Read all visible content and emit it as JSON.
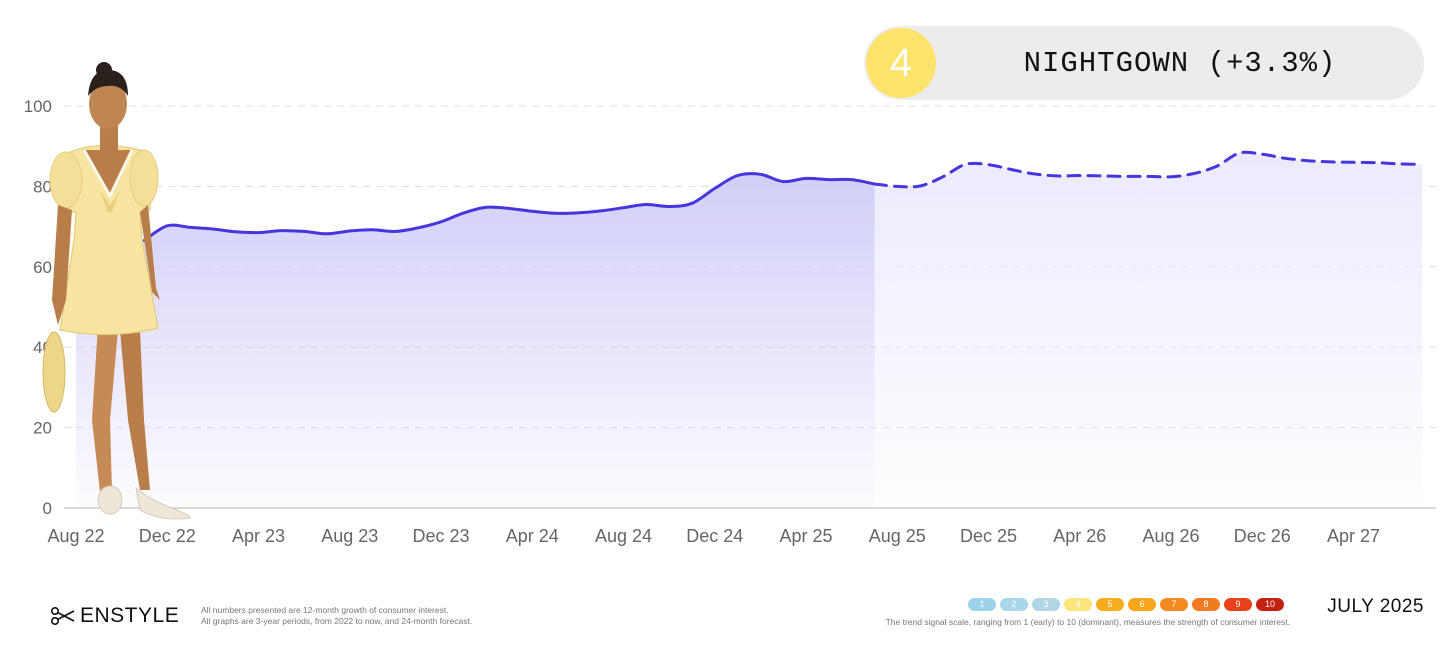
{
  "chart_data": {
    "type": "area",
    "title": "",
    "xlabel": "",
    "ylabel": "",
    "ylim": [
      0,
      100
    ],
    "y_ticks": [
      0,
      20,
      40,
      60,
      80,
      100
    ],
    "x_ticks": [
      "Aug 22",
      "Dec 22",
      "Apr 23",
      "Aug 23",
      "Dec 23",
      "Apr 24",
      "Aug 24",
      "Dec 24",
      "Apr 25",
      "Aug 25",
      "Dec 25",
      "Apr 26",
      "Aug 26",
      "Dec 26",
      "Apr 27"
    ],
    "grid": "horizontal dashed",
    "series": [
      {
        "style": "solid",
        "x": [
          "Nov 22",
          "Dec 22",
          "Jan 23",
          "Feb 23",
          "Mar 23",
          "Apr 23",
          "May 23",
          "Jun 23",
          "Jul 23",
          "Aug 23",
          "Sep 23",
          "Oct 23",
          "Nov 23",
          "Dec 23",
          "Jan 24",
          "Feb 24",
          "Mar 24",
          "Apr 24",
          "May 24",
          "Jun 24",
          "Jul 24",
          "Aug 24",
          "Sep 24",
          "Oct 24",
          "Nov 24",
          "Dec 24",
          "Jan 25",
          "Feb 25",
          "Mar 25",
          "Apr 25",
          "May 25",
          "Jun 25",
          "Jul 25"
        ],
        "values": [
          66.6,
          70.2,
          69.8,
          69.4,
          68.7,
          68.5,
          69.0,
          68.8,
          68.2,
          68.9,
          69.2,
          68.8,
          69.7,
          71.2,
          73.4,
          74.8,
          74.5,
          73.8,
          73.3,
          73.4,
          73.9,
          74.7,
          75.5,
          75.0,
          75.8,
          79.5,
          82.7,
          83.0,
          81.2,
          82.0,
          81.7,
          81.7,
          80.6
        ]
      },
      {
        "style": "dashed forecast",
        "x": [
          "Jul 25",
          "Aug 25",
          "Sep 25",
          "Oct 25",
          "Nov 25",
          "Dec 25",
          "Jan 26",
          "Feb 26",
          "Mar 26",
          "Apr 26",
          "May 26",
          "Jun 26",
          "Jul 26",
          "Aug 26",
          "Sep 26",
          "Oct 26",
          "Nov 26",
          "Dec 26",
          "Jan 27",
          "Feb 27",
          "Mar 27",
          "Apr 27",
          "May 27",
          "Jun 27",
          "Jul 27"
        ],
        "values": [
          80.6,
          80.0,
          80.1,
          82.4,
          85.5,
          85.4,
          84.2,
          83.1,
          82.6,
          82.7,
          82.6,
          82.5,
          82.5,
          82.4,
          83.2,
          85.0,
          88.3,
          88.0,
          87.0,
          86.4,
          86.1,
          86.0,
          85.9,
          85.6,
          85.5
        ]
      }
    ],
    "colors": {
      "line": "#4636dd",
      "fill_past": "#cfccf8",
      "fill_forecast": "#ebe9fc",
      "grid": "#dddddd",
      "axis": "#cccccc"
    }
  },
  "badge": {
    "rank": "4",
    "label": "NIGHTGOWN (+3.3%)",
    "rank_color": "#fde36b"
  },
  "footer": {
    "brand_icon": "scissors-icon",
    "brand_name": "ENSTYLE",
    "note_line1": "All numbers presented are 12-month growth of consumer interest.",
    "note_line2": "All graphs are 3-year periods, from 2022 to now, and 24-month forecast.",
    "scale": [
      {
        "label": "1",
        "color": "#9cd2ea"
      },
      {
        "label": "2",
        "color": "#a9d6ea"
      },
      {
        "label": "3",
        "color": "#b0d6e6"
      },
      {
        "label": "4",
        "color": "#fbe47a"
      },
      {
        "label": "5",
        "color": "#f7ac1c"
      },
      {
        "label": "6",
        "color": "#f7a51b"
      },
      {
        "label": "7",
        "color": "#f48a1f"
      },
      {
        "label": "8",
        "color": "#f27b22"
      },
      {
        "label": "9",
        "color": "#e9421b"
      },
      {
        "label": "10",
        "color": "#c42012"
      }
    ],
    "scale_caption": "The trend signal scale, ranging from 1 (early) to 10 (dominant), measures the strength of consumer interest.",
    "date": "JULY 2025"
  }
}
